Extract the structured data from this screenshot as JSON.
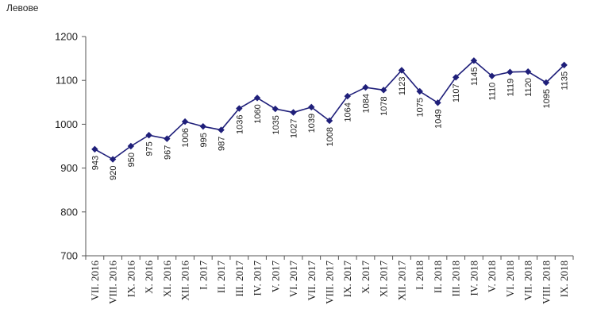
{
  "chart_data": {
    "type": "line",
    "ylabel": "Левове",
    "ylim": [
      700,
      1200
    ],
    "yticks": [
      700,
      800,
      900,
      1000,
      1100,
      1200
    ],
    "grid": false,
    "legend": "none",
    "line_color": "#1f1f7a",
    "categories": [
      "VII. 2016",
      "VIII. 2016",
      "IX. 2016",
      "X. 2016",
      "XI. 2016",
      "XII. 2016",
      "I. 2017",
      "II. 2017",
      "III. 2017",
      "IV. 2017",
      "V. 2017",
      "VI. 2017",
      "VII. 2017",
      "VIII. 2017",
      "IX. 2017",
      "X. 2017",
      "XI. 2017",
      "XII. 2017",
      "I. 2018",
      "II. 2018",
      "III. 2018",
      "IV. 2018",
      "V. 2018",
      "VI. 2018",
      "VII. 2018",
      "VIII. 2018",
      "IX. 2018"
    ],
    "values": [
      943,
      920,
      950,
      975,
      967,
      1006,
      995,
      987,
      1036,
      1060,
      1035,
      1027,
      1039,
      1008,
      1064,
      1084,
      1078,
      1123,
      1075,
      1049,
      1107,
      1145,
      1110,
      1119,
      1120,
      1095,
      1135
    ],
    "data_label_position": [
      "below",
      "below",
      "below",
      "below",
      "below",
      "below",
      "below",
      "below",
      "below",
      "below",
      "below",
      "below",
      "below",
      "below",
      "below",
      "below",
      "below",
      "below",
      "below",
      "below",
      "below",
      "below",
      "below",
      "below",
      "below",
      "below",
      "below"
    ]
  }
}
